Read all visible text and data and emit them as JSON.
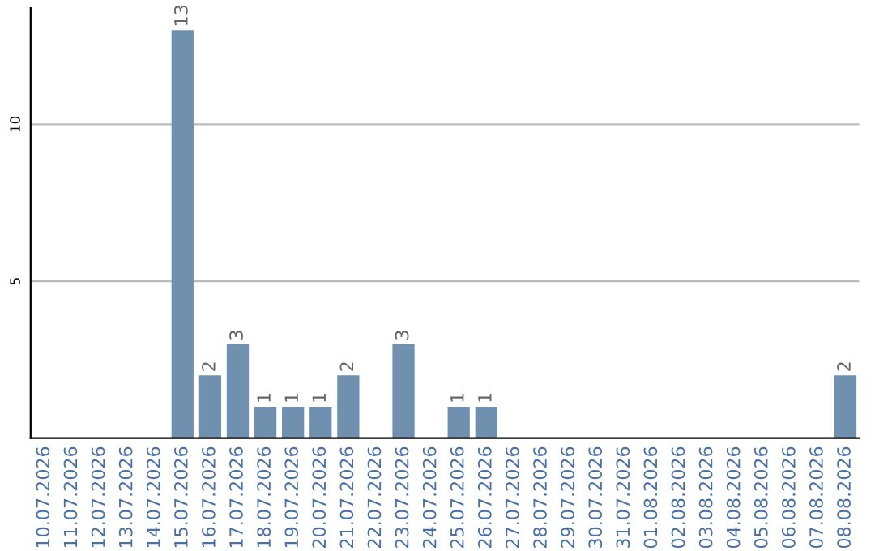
{
  "chart_data": {
    "type": "bar",
    "categories": [
      "10.07.2026",
      "11.07.2026",
      "12.07.2026",
      "13.07.2026",
      "14.07.2026",
      "15.07.2026",
      "16.07.2026",
      "17.07.2026",
      "18.07.2026",
      "19.07.2026",
      "20.07.2026",
      "21.07.2026",
      "22.07.2026",
      "23.07.2026",
      "24.07.2026",
      "25.07.2026",
      "26.07.2026",
      "27.07.2026",
      "28.07.2026",
      "29.07.2026",
      "30.07.2026",
      "31.07.2026",
      "01.08.2026",
      "02.08.2026",
      "03.08.2026",
      "04.08.2026",
      "05.08.2026",
      "06.08.2026",
      "07.08.2026",
      "08.08.2026"
    ],
    "values": [
      0,
      0,
      0,
      0,
      0,
      13,
      2,
      3,
      1,
      1,
      1,
      2,
      0,
      3,
      0,
      1,
      1,
      0,
      0,
      0,
      0,
      0,
      0,
      0,
      0,
      0,
      0,
      0,
      0,
      2
    ],
    "value_labels": [
      null,
      null,
      null,
      null,
      null,
      "13",
      "2",
      "3",
      "1",
      "1",
      "1",
      "2",
      null,
      "3",
      null,
      "1",
      "1",
      null,
      null,
      null,
      null,
      null,
      null,
      null,
      null,
      null,
      null,
      null,
      null,
      "2"
    ],
    "color": "#7090b0",
    "ylim": [
      0,
      13.7
    ],
    "yticks": [
      5,
      10
    ],
    "grid": "y"
  }
}
